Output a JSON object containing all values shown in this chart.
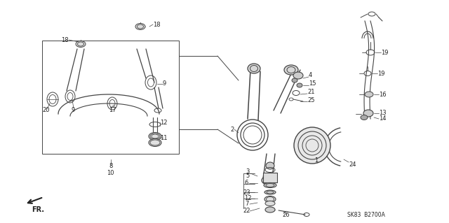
{
  "bg_color": "#f0f0f0",
  "diagram_code": "SK83  B2700A",
  "fr_label": "FR.",
  "gray": "#444444",
  "lw_main": 0.9,
  "figsize": [
    6.4,
    3.19
  ],
  "dpi": 100
}
